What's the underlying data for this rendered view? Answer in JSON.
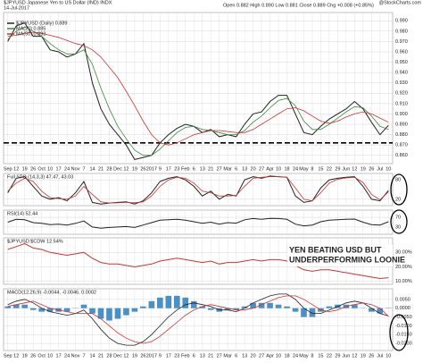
{
  "chart_data": [
    {
      "type": "line",
      "title": "$JPYUSD Japanese Yen to US Dollar (IND) INDX",
      "subtitle": "14-Jul-2017",
      "ohlc": "Open 0.882  High 0.890  Low 0.881  Close 0.889  Chg +0.008 (+0.85%)",
      "source": "@StockCharts.com",
      "categories": [
        "Sep",
        "12",
        "19",
        "26",
        "Oct",
        "10",
        "17",
        "24",
        "Nov",
        "7",
        "14",
        "21",
        "28",
        "Dec",
        "12",
        "19",
        "26",
        "2017",
        "9",
        "17",
        "23",
        "Feb",
        "6",
        "13",
        "21",
        "27",
        "Mar",
        "6",
        "13",
        "20",
        "27",
        "Apr",
        "10",
        "18",
        "24",
        "May",
        "8",
        "15",
        "22",
        "29",
        "Jun",
        "12",
        "19",
        "26",
        "Jul",
        "10"
      ],
      "series": [
        {
          "name": "$JPYUSD (Daily) 0.889",
          "color": "#222222",
          "values": [
            0.97,
            0.985,
            0.988,
            0.975,
            0.975,
            0.962,
            0.96,
            0.955,
            0.958,
            0.968,
            0.93,
            0.905,
            0.89,
            0.88,
            0.87,
            0.856,
            0.858,
            0.86,
            0.872,
            0.88,
            0.886,
            0.89,
            0.888,
            0.882,
            0.885,
            0.878,
            0.88,
            0.878,
            0.89,
            0.9,
            0.902,
            0.912,
            0.918,
            0.918,
            0.9,
            0.882,
            0.88,
            0.888,
            0.895,
            0.9,
            0.905,
            0.912,
            0.905,
            0.892,
            0.88,
            0.889
          ]
        },
        {
          "name": "MA(20) 0.885",
          "color": "#3a8a3a",
          "values": [
            0.972,
            0.98,
            0.984,
            0.98,
            0.975,
            0.968,
            0.962,
            0.958,
            0.958,
            0.962,
            0.948,
            0.925,
            0.905,
            0.888,
            0.876,
            0.865,
            0.86,
            0.86,
            0.866,
            0.874,
            0.882,
            0.887,
            0.888,
            0.885,
            0.884,
            0.882,
            0.88,
            0.88,
            0.884,
            0.892,
            0.898,
            0.906,
            0.913,
            0.915,
            0.908,
            0.893,
            0.885,
            0.885,
            0.89,
            0.896,
            0.902,
            0.907,
            0.906,
            0.898,
            0.888,
            0.885
          ]
        },
        {
          "name": "MA(50) 0.892",
          "color": "#cc3333",
          "values": [
            0.975,
            0.976,
            0.978,
            0.979,
            0.978,
            0.976,
            0.974,
            0.971,
            0.968,
            0.966,
            0.962,
            0.955,
            0.945,
            0.935,
            0.922,
            0.908,
            0.893,
            0.88,
            0.872,
            0.87,
            0.872,
            0.876,
            0.88,
            0.882,
            0.884,
            0.884,
            0.883,
            0.882,
            0.882,
            0.885,
            0.89,
            0.895,
            0.9,
            0.905,
            0.906,
            0.903,
            0.898,
            0.893,
            0.891,
            0.893,
            0.897,
            0.9,
            0.902,
            0.9,
            0.896,
            0.892
          ]
        }
      ],
      "hline": 0.872,
      "ylim": [
        0.852,
        0.998
      ],
      "yticks": [
        {
          "value": 0.86,
          "label": "0.860"
        },
        {
          "value": 0.87,
          "label": "0.870"
        },
        {
          "value": 0.88,
          "label": "0.880"
        },
        {
          "value": 0.89,
          "label": "0.890"
        },
        {
          "value": 0.9,
          "label": "0.900"
        },
        {
          "value": 0.91,
          "label": "0.910"
        },
        {
          "value": 0.92,
          "label": "0.920"
        },
        {
          "value": 0.93,
          "label": "0.930"
        },
        {
          "value": 0.94,
          "label": "0.940"
        },
        {
          "value": 0.95,
          "label": "0.950"
        },
        {
          "value": 0.96,
          "label": "0.960"
        },
        {
          "value": 0.97,
          "label": "0.970"
        },
        {
          "value": 0.98,
          "label": "0.980"
        },
        {
          "value": 0.99,
          "label": "0.990"
        }
      ],
      "grid": true
    },
    {
      "type": "line",
      "title": "Full STO (14,3,3) 47.47, 43.03",
      "series": [
        {
          "color": "#222222",
          "values": [
            40,
            85,
            90,
            60,
            30,
            20,
            25,
            15,
            40,
            75,
            10,
            5,
            8,
            10,
            12,
            5,
            15,
            40,
            75,
            85,
            90,
            80,
            60,
            30,
            45,
            20,
            35,
            30,
            80,
            90,
            85,
            92,
            90,
            88,
            30,
            10,
            15,
            55,
            80,
            85,
            88,
            90,
            60,
            20,
            15,
            47
          ]
        },
        {
          "color": "#cc3333",
          "values": [
            45,
            70,
            85,
            75,
            45,
            25,
            22,
            20,
            30,
            60,
            35,
            12,
            8,
            9,
            10,
            9,
            12,
            30,
            60,
            80,
            88,
            85,
            70,
            45,
            40,
            30,
            30,
            32,
            60,
            85,
            88,
            90,
            90,
            88,
            55,
            20,
            15,
            40,
            70,
            82,
            86,
            88,
            72,
            35,
            18,
            43
          ]
        }
      ],
      "ylim": [
        0,
        100
      ],
      "yticks": [
        20,
        80
      ],
      "grid": true
    },
    {
      "type": "line",
      "title": "RSI(14) 52.44",
      "series": [
        {
          "color": "#222222",
          "values": [
            50,
            62,
            60,
            48,
            45,
            40,
            42,
            38,
            45,
            55,
            30,
            25,
            28,
            30,
            32,
            28,
            38,
            48,
            58,
            60,
            62,
            58,
            52,
            45,
            50,
            42,
            48,
            46,
            60,
            65,
            62,
            66,
            65,
            62,
            42,
            35,
            38,
            52,
            58,
            60,
            62,
            63,
            50,
            40,
            38,
            52
          ]
        }
      ],
      "ylim": [
        0,
        100
      ],
      "yticks": [
        30,
        70
      ],
      "grid": true
    },
    {
      "type": "line",
      "title": "$JPYUSD:$CDW 12.54%",
      "annotation": [
        "YEN BEATING USD BUT",
        "UNDERPERFORMING LOONIE"
      ],
      "series": [
        {
          "color": "#cc3333",
          "values": [
            32,
            34,
            36,
            33,
            32,
            30,
            29,
            28,
            29,
            30,
            26,
            23,
            22,
            22,
            21,
            20,
            21,
            22,
            24,
            25,
            26,
            25,
            24,
            23,
            24,
            22,
            23,
            23,
            24,
            25,
            24,
            25,
            25,
            24,
            21,
            18,
            17,
            18,
            18,
            17,
            16,
            15,
            14,
            13,
            12,
            12.54
          ]
        }
      ],
      "ylim": [
        8,
        40
      ],
      "yticks": [
        {
          "value": 10,
          "label": "10.00%"
        },
        {
          "value": 20,
          "label": "20.00%"
        },
        {
          "value": 30,
          "label": "30.00%"
        }
      ],
      "grid": true
    },
    {
      "type": "line",
      "title": "MACD(12,26,9) -0.0044, -0.0046, 0.0002",
      "categories": [
        "Sep",
        "12",
        "19",
        "26",
        "Oct",
        "10",
        "17",
        "24",
        "Nov",
        "7",
        "14",
        "21",
        "28",
        "Dec",
        "12",
        "19",
        "26",
        "2017",
        "9",
        "17",
        "23",
        "Feb",
        "6",
        "13",
        "21",
        "27",
        "Mar",
        "6",
        "13",
        "20",
        "27",
        "Apr",
        "10",
        "18",
        "24",
        "May",
        "8",
        "15",
        "22",
        "29",
        "Jun",
        "12",
        "19",
        "26",
        "Jul",
        "10"
      ],
      "series": [
        {
          "type": "bar",
          "color": "#4a90c8",
          "values": [
            0.001,
            0.002,
            0.002,
            -0.001,
            -0.002,
            -0.002,
            -0.002,
            -0.002,
            0.0,
            0.002,
            -0.003,
            -0.006,
            -0.007,
            -0.006,
            -0.004,
            -0.002,
            0.001,
            0.004,
            0.006,
            0.007,
            0.007,
            0.006,
            0.004,
            0.001,
            -0.001,
            -0.002,
            -0.001,
            -0.001,
            0.001,
            0.003,
            0.003,
            0.003,
            0.002,
            0.001,
            -0.002,
            -0.005,
            -0.005,
            -0.002,
            0.001,
            0.002,
            0.002,
            0.002,
            0.0,
            -0.002,
            -0.003,
            0.0002
          ]
        },
        {
          "color": "#222222",
          "values": [
            0.002,
            0.004,
            0.005,
            0.003,
            0.0,
            -0.002,
            -0.003,
            -0.004,
            -0.003,
            -0.001,
            -0.006,
            -0.012,
            -0.017,
            -0.02,
            -0.021,
            -0.021,
            -0.019,
            -0.015,
            -0.01,
            -0.005,
            -0.001,
            0.002,
            0.003,
            0.002,
            0.001,
            -0.001,
            -0.001,
            -0.002,
            0.0,
            0.003,
            0.005,
            0.007,
            0.008,
            0.008,
            0.005,
            0.0,
            -0.003,
            -0.003,
            -0.001,
            0.001,
            0.003,
            0.004,
            0.003,
            0.0,
            -0.003,
            -0.0044
          ]
        },
        {
          "color": "#cc3333",
          "values": [
            0.001,
            0.002,
            0.003,
            0.004,
            0.002,
            0.0,
            -0.001,
            -0.002,
            -0.003,
            -0.003,
            -0.003,
            -0.006,
            -0.01,
            -0.014,
            -0.017,
            -0.019,
            -0.02,
            -0.019,
            -0.016,
            -0.012,
            -0.008,
            -0.004,
            -0.001,
            0.001,
            0.002,
            0.001,
            0.0,
            -0.001,
            -0.001,
            0.0,
            0.002,
            0.004,
            0.006,
            0.007,
            0.007,
            0.005,
            0.002,
            -0.001,
            -0.002,
            -0.001,
            0.001,
            0.002,
            0.003,
            0.002,
            0.0,
            -0.0046
          ]
        }
      ],
      "ylim": [
        -0.024,
        0.011
      ],
      "yticks": [
        {
          "value": 0.005,
          "label": "0.0050"
        },
        {
          "value": 0,
          "label": "0.0000"
        },
        {
          "value": -0.005,
          "label": "-0.0050"
        },
        {
          "value": -0.01,
          "label": "-0.0100"
        },
        {
          "value": -0.015,
          "label": "-0.0150"
        },
        {
          "value": -0.02,
          "label": "-0.0200"
        }
      ],
      "grid": true
    }
  ]
}
